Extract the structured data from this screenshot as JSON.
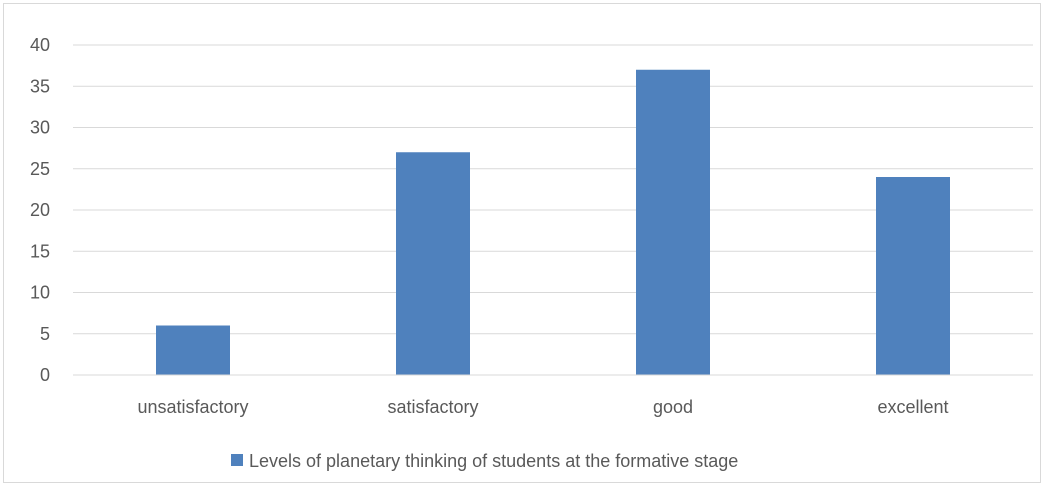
{
  "chart_data": {
    "type": "bar",
    "title": "",
    "xlabel": "",
    "ylabel": "",
    "categories": [
      "unsatisfactory",
      "satisfactory",
      "good",
      "excellent"
    ],
    "series": [
      {
        "name": "Levels of planetary thinking of students at the formative stage",
        "values": [
          6,
          27,
          37,
          24
        ],
        "color": "#4f81bd"
      }
    ],
    "ylim": [
      0,
      40
    ],
    "yticks": [
      "0",
      "5",
      "10",
      "15",
      "20",
      "25",
      "30",
      "35",
      "40"
    ],
    "grid": true,
    "gridline_color": "#d9d9d9",
    "legend_position": "bottom"
  }
}
